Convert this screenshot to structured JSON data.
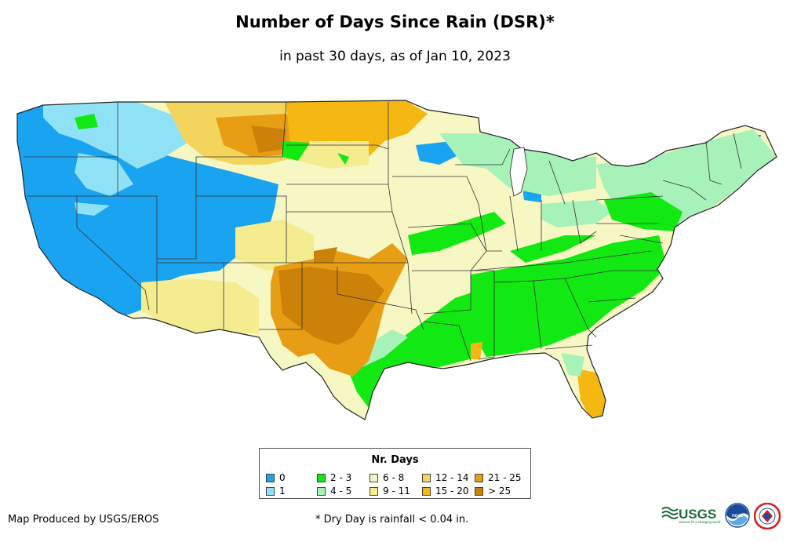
{
  "title": "Number of Days Since Rain (DSR)*",
  "subtitle": "in past 30 days, as of Jan 10, 2023",
  "legend": {
    "title": "Nr. Days",
    "items": [
      {
        "label": "0",
        "color": "#1aa3f0"
      },
      {
        "label": "1",
        "color": "#8fe2f6"
      },
      {
        "label": "2 - 3",
        "color": "#12e812"
      },
      {
        "label": "4 - 5",
        "color": "#a6f2b8"
      },
      {
        "label": "6 - 8",
        "color": "#f7f7c4"
      },
      {
        "label": "9 - 11",
        "color": "#f5ec90"
      },
      {
        "label": "12 - 14",
        "color": "#f3d55e"
      },
      {
        "label": "15 - 20",
        "color": "#f5b812"
      },
      {
        "label": "21 - 25",
        "color": "#e89e14"
      },
      {
        "label": "> 25",
        "color": "#cc8208"
      }
    ]
  },
  "footer": {
    "credit": "Map Produced by USGS/EROS",
    "note": "* Dry Day is rainfall < 0.04 in."
  },
  "logos": {
    "usgs": {
      "text": "USGS",
      "tagline": "science for a changing world",
      "color": "#1e6b3a"
    },
    "noaa": {
      "text": "noaa",
      "color": "#1b4c9c"
    },
    "nws": {
      "color": "#d02020"
    }
  }
}
